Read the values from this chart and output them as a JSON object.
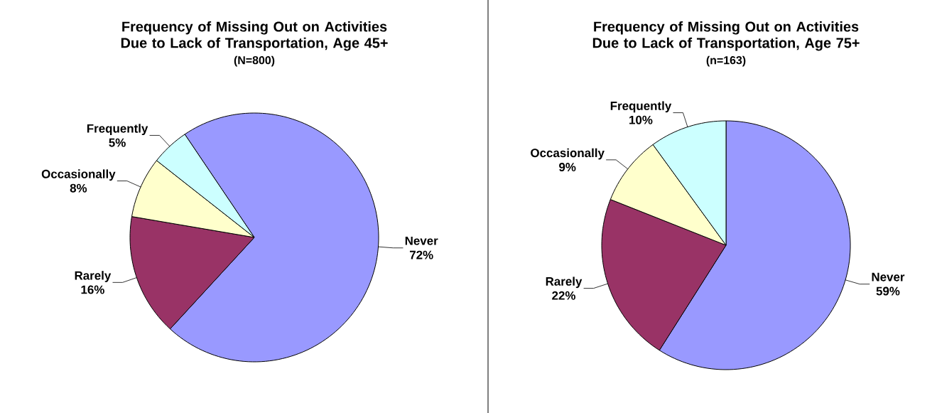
{
  "chart_data": [
    {
      "type": "pie",
      "title": "Frequency of Missing Out on Activities Due to Lack of Transportation, Age 45+",
      "subtitle": "(N=800)",
      "categories": [
        "Never",
        "Rarely",
        "Occasionally",
        "Frequently"
      ],
      "values": [
        72,
        16,
        8,
        5
      ],
      "value_labels": [
        "72%",
        "16%",
        "8%",
        "5%"
      ],
      "colors": [
        "#9999ff",
        "#993366",
        "#ffffcc",
        "#ccffff"
      ]
    },
    {
      "type": "pie",
      "title": "Frequency of Missing Out on Activities Due to Lack of Transportation, Age 75+",
      "subtitle": "(n=163)",
      "categories": [
        "Never",
        "Rarely",
        "Occasionally",
        "Frequently"
      ],
      "values": [
        59,
        22,
        9,
        10
      ],
      "value_labels": [
        "59%",
        "22%",
        "9%",
        "10%"
      ],
      "colors": [
        "#9999ff",
        "#993366",
        "#ffffcc",
        "#ccffff"
      ]
    }
  ]
}
